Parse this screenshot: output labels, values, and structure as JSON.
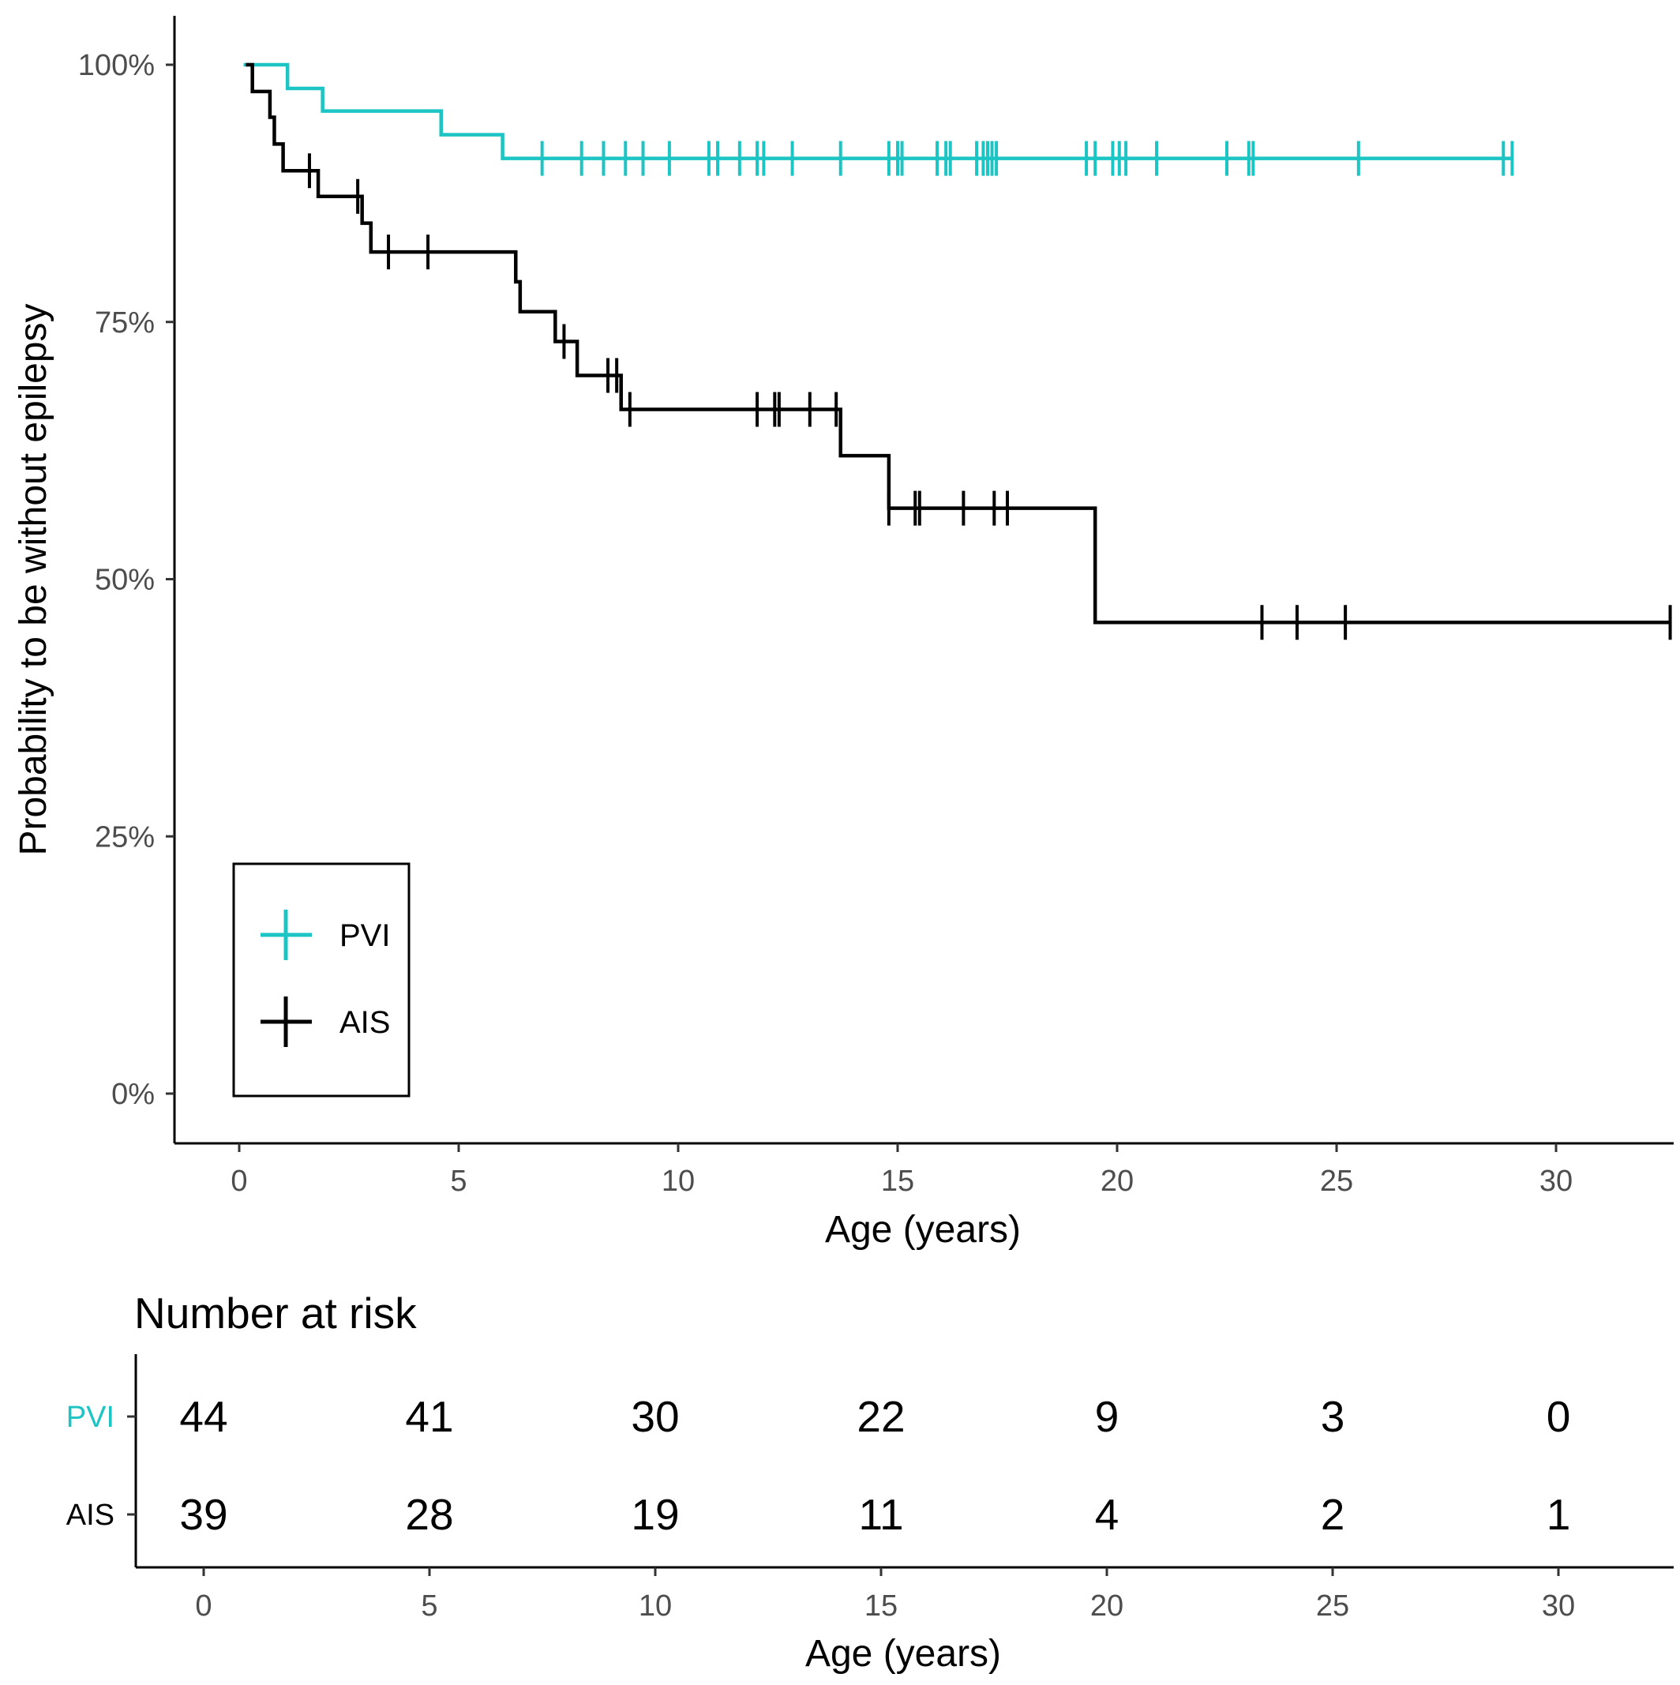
{
  "chart_data": [
    {
      "type": "line",
      "subtype": "kaplan-meier",
      "title": "",
      "xlabel": "Age (years)",
      "ylabel": "Probability to be without epilepsy",
      "xlim": [
        -1.5,
        32.6
      ],
      "ylim": [
        -0.05,
        1.05
      ],
      "x_ticks": [
        0,
        5,
        10,
        15,
        20,
        25,
        30
      ],
      "x_tick_labels": [
        "0",
        "5",
        "10",
        "15",
        "20",
        "25",
        "30"
      ],
      "y_ticks": [
        0,
        0.25,
        0.5,
        0.75,
        1.0
      ],
      "y_tick_labels": [
        "0%",
        "25%",
        "50%",
        "75%",
        "100%"
      ],
      "grid": false,
      "legend": {
        "position": "bottom-left",
        "boxed": true
      },
      "series": [
        {
          "name": "PVI",
          "color": "#1cc4c4",
          "steps": [
            [
              0.1,
              1.0
            ],
            [
              1.1,
              0.977
            ],
            [
              1.9,
              0.955
            ],
            [
              4.6,
              0.932
            ],
            [
              6.0,
              0.909
            ],
            [
              29.0,
              0.909
            ]
          ],
          "censor_times": [
            6.9,
            7.8,
            8.3,
            8.8,
            9.2,
            9.8,
            10.7,
            10.9,
            11.4,
            11.8,
            11.95,
            12.6,
            13.7,
            14.8,
            15.0,
            15.1,
            15.9,
            16.1,
            16.2,
            16.8,
            16.95,
            17.05,
            17.15,
            17.25,
            19.3,
            19.5,
            19.9,
            20.05,
            20.2,
            20.9,
            22.5,
            23.0,
            23.1,
            25.5,
            28.8,
            29.0
          ]
        },
        {
          "name": "AIS",
          "color": "#000000",
          "steps": [
            [
              0.15,
              1.0
            ],
            [
              0.3,
              0.974
            ],
            [
              0.7,
              0.949
            ],
            [
              0.8,
              0.923
            ],
            [
              1.0,
              0.897
            ],
            [
              1.8,
              0.872
            ],
            [
              2.8,
              0.846
            ],
            [
              3.0,
              0.818
            ],
            [
              6.3,
              0.789
            ],
            [
              6.4,
              0.76
            ],
            [
              7.2,
              0.731
            ],
            [
              7.7,
              0.698
            ],
            [
              8.7,
              0.665
            ],
            [
              13.7,
              0.62
            ],
            [
              14.8,
              0.569
            ],
            [
              19.5,
              0.458
            ],
            [
              32.6,
              0.458
            ]
          ],
          "censor_times": [
            1.6,
            2.7,
            3.4,
            4.3,
            7.4,
            8.4,
            8.6,
            8.9,
            11.8,
            12.2,
            12.3,
            13.0,
            13.6,
            14.8,
            15.4,
            15.5,
            16.5,
            17.2,
            17.5,
            23.3,
            24.1,
            25.2,
            32.6
          ]
        }
      ]
    },
    {
      "type": "table",
      "title": "Number at risk",
      "xlabel": "Age (years)",
      "x_ticks": [
        0,
        5,
        10,
        15,
        20,
        25,
        30
      ],
      "x_tick_labels": [
        "0",
        "5",
        "10",
        "15",
        "20",
        "25",
        "30"
      ],
      "rows": [
        {
          "name": "PVI",
          "color": "#1cc4c4",
          "values": [
            "44",
            "41",
            "30",
            "22",
            "9",
            "3",
            "0"
          ]
        },
        {
          "name": "AIS",
          "color": "#000000",
          "values": [
            "39",
            "28",
            "19",
            "11",
            "4",
            "2",
            "1"
          ]
        }
      ]
    }
  ]
}
